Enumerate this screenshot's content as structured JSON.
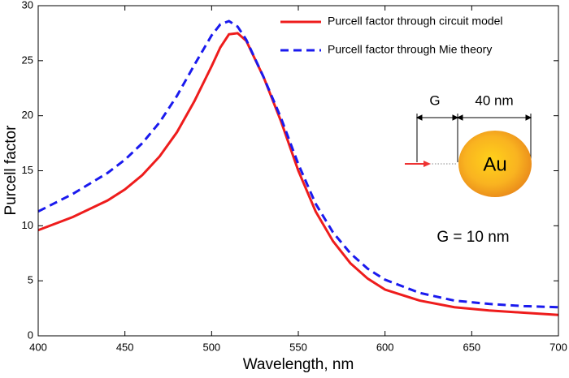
{
  "chart_data": {
    "type": "line",
    "x_label": "Wavelength, nm",
    "y_label": "Purcell factor",
    "x": [
      400,
      420,
      440,
      450,
      460,
      470,
      480,
      490,
      500,
      505,
      510,
      515,
      520,
      530,
      540,
      550,
      560,
      570,
      580,
      590,
      600,
      620,
      640,
      660,
      680,
      700
    ],
    "series": [
      {
        "name": "Purcell factor through circuit model",
        "color": "#ee1c1c",
        "dash": "solid",
        "values": [
          9.6,
          10.8,
          12.3,
          13.3,
          14.6,
          16.3,
          18.5,
          21.3,
          24.5,
          26.2,
          27.4,
          27.5,
          26.8,
          23.5,
          19.5,
          15.0,
          11.3,
          8.6,
          6.6,
          5.2,
          4.2,
          3.2,
          2.6,
          2.3,
          2.1,
          1.9
        ]
      },
      {
        "name": "Purcell factor through Mie theory",
        "color": "#1a1aee",
        "dash": "dashed",
        "values": [
          11.3,
          12.9,
          14.8,
          16.0,
          17.5,
          19.4,
          21.8,
          24.6,
          27.3,
          28.3,
          28.6,
          28.1,
          26.9,
          23.5,
          19.8,
          15.6,
          12.0,
          9.4,
          7.5,
          6.1,
          5.1,
          3.9,
          3.2,
          2.9,
          2.7,
          2.6
        ]
      }
    ],
    "xlim": [
      400,
      700
    ],
    "xticks": [
      400,
      450,
      500,
      550,
      600,
      650,
      700
    ],
    "ylim": [
      0,
      30
    ],
    "yticks": [
      0,
      5,
      10,
      15,
      20,
      25,
      30
    ],
    "legend": "upper right",
    "annotations": [
      "G",
      "40 nm",
      "Au",
      "G = 10 nm"
    ]
  }
}
